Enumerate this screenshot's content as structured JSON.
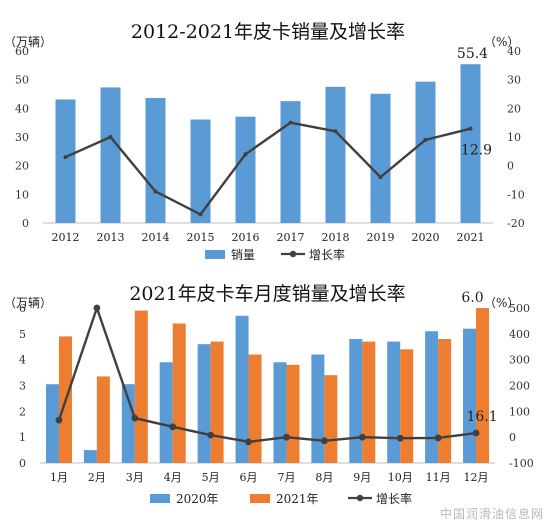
{
  "chart_data": [
    {
      "type": "bar",
      "title": "2012-2021年皮卡销量及增长率",
      "left_unit": "（万辆）",
      "right_unit": "（%）",
      "categories": [
        "2012",
        "2013",
        "2014",
        "2015",
        "2016",
        "2017",
        "2018",
        "2019",
        "2020",
        "2021"
      ],
      "series": [
        {
          "name": "销量",
          "kind": "bar",
          "axis": "left",
          "color": "#5b9bd5",
          "values": [
            43.1,
            47.3,
            43.6,
            36.1,
            37.1,
            42.5,
            47.5,
            45.1,
            49.3,
            55.4
          ]
        },
        {
          "name": "增长率",
          "kind": "line",
          "axis": "right",
          "color": "#404040",
          "values": [
            3,
            10,
            -9,
            -17,
            4,
            15,
            12,
            -4,
            9,
            12.9
          ]
        }
      ],
      "left_ylim": [
        0,
        60
      ],
      "left_ticks": [
        "0",
        "10",
        "20",
        "30",
        "40",
        "50",
        "60"
      ],
      "right_ylim": [
        -20,
        40
      ],
      "right_ticks": [
        "-20",
        "-10",
        "0",
        "10",
        "20",
        "30",
        "40"
      ],
      "annotations": {
        "last_bar": "55.4",
        "last_point": "12.9"
      },
      "legend": "bottom"
    },
    {
      "type": "bar",
      "title": "2021年皮卡车月度销量及增长率",
      "left_unit": "（万辆）",
      "right_unit": "（%）",
      "categories": [
        "1月",
        "2月",
        "3月",
        "4月",
        "5月",
        "6月",
        "7月",
        "8月",
        "9月",
        "10月",
        "11月",
        "12月"
      ],
      "series": [
        {
          "name": "2020年",
          "kind": "bar",
          "axis": "left",
          "color": "#5b9bd5",
          "values": [
            3.05,
            0.5,
            3.05,
            3.9,
            4.6,
            5.7,
            3.9,
            4.2,
            4.8,
            4.7,
            5.1,
            5.2
          ]
        },
        {
          "name": "2021年",
          "kind": "bar",
          "axis": "left",
          "color": "#ed7d31",
          "values": [
            4.9,
            3.35,
            5.9,
            5.4,
            4.7,
            4.2,
            3.8,
            3.4,
            4.7,
            4.4,
            4.8,
            6.0
          ]
        },
        {
          "name": "增长率",
          "kind": "line",
          "axis": "right",
          "color": "#404040",
          "values": [
            66,
            500,
            74,
            40,
            8,
            -18,
            0,
            -14,
            0,
            -4,
            -3,
            16.1
          ]
        }
      ],
      "left_ylim": [
        0,
        6
      ],
      "left_ticks": [
        "0",
        "1",
        "2",
        "3",
        "4",
        "5",
        "6"
      ],
      "right_ylim": [
        -100,
        500
      ],
      "right_ticks": [
        "-100",
        "0",
        "100",
        "200",
        "300",
        "400",
        "500"
      ],
      "annotations": {
        "last_bar": "6.0",
        "last_point": "16.1"
      },
      "legend": "bottom"
    }
  ],
  "watermark": "中国润滑油信息网",
  "colors": {
    "blue": "#5b9bd5",
    "orange": "#ed7d31",
    "line": "#404040",
    "axis": "#bfbfbf"
  }
}
